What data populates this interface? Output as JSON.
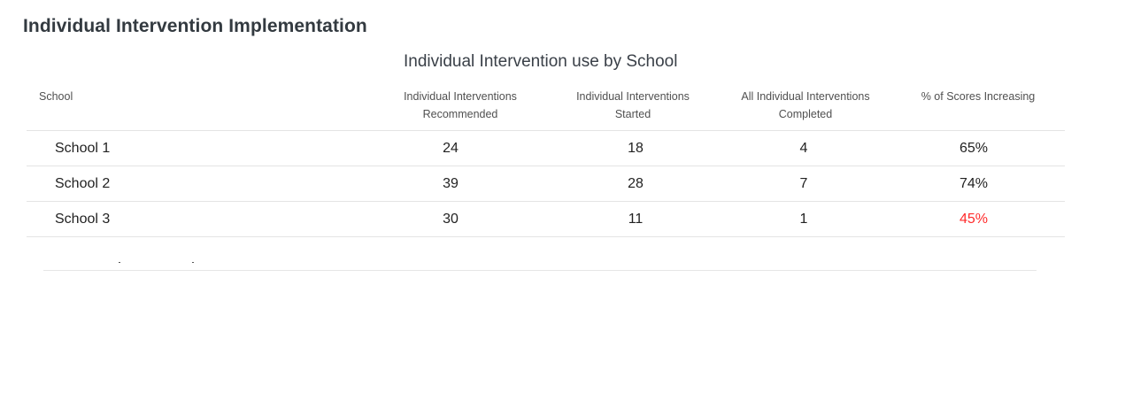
{
  "section": {
    "title": "Individual Intervention Implementation"
  },
  "table": {
    "caption": "Individual Intervention use by School",
    "headers": {
      "school": "School",
      "recommended_line1": "Individual Interventions",
      "recommended_line2": "Recommended",
      "started_line1": "Individual Interventions",
      "started_line2": "Started",
      "completed_line1": "All Individual Interventions",
      "completed_line2": "Completed",
      "scores_increasing": "% of Scores Increasing"
    },
    "rows": [
      {
        "school": "School 1",
        "recommended": "24",
        "started": "18",
        "completed": "4",
        "scores_increasing": "65%"
      },
      {
        "school": "School 2",
        "recommended": "39",
        "started": "28",
        "completed": "7",
        "scores_increasing": "74%"
      },
      {
        "school": "School 3",
        "recommended": "30",
        "started": "11",
        "completed": "1",
        "scores_increasing": "45%"
      }
    ]
  },
  "colors": {
    "alert_value": "#ff2b2b",
    "row_divider": "#e4e4e4"
  }
}
